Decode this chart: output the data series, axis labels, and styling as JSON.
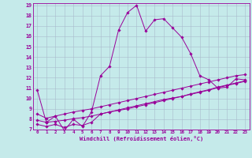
{
  "xlabel": "Windchill (Refroidissement éolien,°C)",
  "xlim": [
    -0.5,
    23.5
  ],
  "ylim": [
    7,
    19.2
  ],
  "xticks": [
    0,
    1,
    2,
    3,
    4,
    5,
    6,
    7,
    8,
    9,
    10,
    11,
    12,
    13,
    14,
    15,
    16,
    17,
    18,
    19,
    20,
    21,
    22,
    23
  ],
  "yticks": [
    7,
    8,
    9,
    10,
    11,
    12,
    13,
    14,
    15,
    16,
    17,
    18,
    19
  ],
  "background_color": "#c5eaea",
  "grid_color": "#aabbcc",
  "line_color": "#990099",
  "line1_x": [
    0,
    1,
    2,
    3,
    4,
    5,
    6,
    7,
    8,
    9,
    10,
    11,
    12,
    13,
    14,
    15,
    16,
    17,
    18,
    19,
    20,
    21,
    22,
    23
  ],
  "line1_y": [
    10.8,
    7.7,
    8.3,
    6.9,
    8.0,
    7.3,
    8.7,
    12.2,
    13.1,
    16.6,
    18.3,
    19.0,
    16.5,
    17.6,
    17.7,
    16.8,
    15.9,
    14.3,
    12.2,
    11.8,
    11.0,
    11.1,
    11.9,
    11.8
  ],
  "line2_x": [
    0,
    1,
    2,
    3,
    4,
    5,
    6,
    7,
    8,
    9,
    10,
    11,
    12,
    13,
    14,
    15,
    16,
    17,
    18,
    19,
    20,
    21,
    22,
    23
  ],
  "line2_y": [
    8.5,
    8.1,
    8.3,
    8.5,
    8.7,
    8.85,
    9.0,
    9.2,
    9.4,
    9.6,
    9.8,
    10.0,
    10.2,
    10.4,
    10.6,
    10.8,
    11.0,
    11.2,
    11.4,
    11.6,
    11.8,
    12.0,
    12.2,
    12.3
  ],
  "line3_x": [
    0,
    1,
    2,
    3,
    4,
    5,
    6,
    7,
    8,
    9,
    10,
    11,
    12,
    13,
    14,
    15,
    16,
    17,
    18,
    19,
    20,
    21,
    22,
    23
  ],
  "line3_y": [
    7.9,
    7.7,
    7.8,
    7.9,
    8.05,
    8.15,
    8.3,
    8.5,
    8.7,
    8.9,
    9.1,
    9.3,
    9.5,
    9.7,
    9.9,
    10.05,
    10.2,
    10.45,
    10.65,
    10.85,
    11.1,
    11.3,
    11.5,
    11.7
  ],
  "line4_x": [
    0,
    1,
    2,
    3,
    4,
    5,
    6,
    7,
    8,
    9,
    10,
    11,
    12,
    13,
    14,
    15,
    16,
    17,
    18,
    19,
    20,
    21,
    22,
    23
  ],
  "line4_y": [
    7.5,
    7.3,
    7.5,
    7.2,
    7.5,
    7.4,
    7.7,
    8.5,
    8.7,
    8.85,
    9.0,
    9.2,
    9.4,
    9.6,
    9.8,
    10.0,
    10.2,
    10.4,
    10.6,
    10.8,
    11.05,
    11.25,
    11.45,
    11.65
  ]
}
